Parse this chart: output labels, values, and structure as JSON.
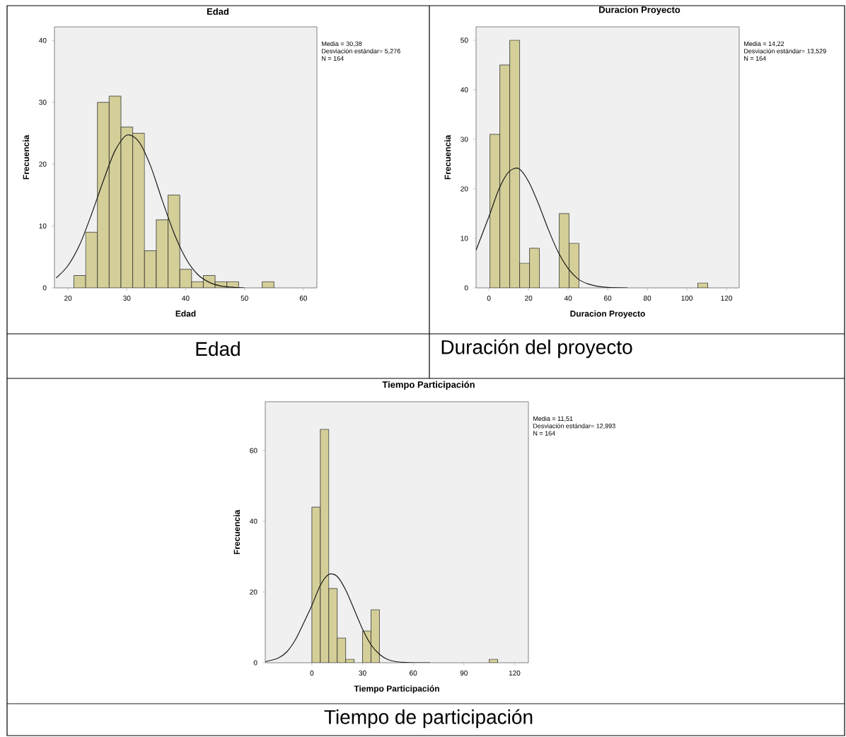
{
  "chart_data": [
    {
      "type": "histogram",
      "title": "Edad",
      "xlabel": "Edad",
      "ylabel": "Frecuencia",
      "bins": [
        21,
        23,
        25,
        27,
        29,
        31,
        33,
        35,
        37,
        39,
        41,
        43,
        45,
        47,
        49,
        51,
        53,
        55
      ],
      "series": [
        {
          "type": "histogram",
          "color": "#d4cf98",
          "values": [
            2,
            9,
            30,
            31,
            26,
            25,
            6,
            11,
            15,
            3,
            1,
            2,
            1,
            1,
            0,
            0,
            1
          ]
        },
        {
          "type": "line",
          "color": "#1a1a1a",
          "x": [
            18,
            20,
            22,
            24,
            26,
            28,
            30,
            32,
            34,
            36,
            38,
            40,
            42,
            44,
            46,
            48,
            50
          ],
          "values": [
            1.6,
            3.6,
            7.0,
            11.9,
            17.3,
            22.2,
            24.7,
            23.7,
            19.8,
            14.2,
            8.9,
            4.8,
            2.2,
            0.9,
            0.3,
            0.1,
            0
          ]
        }
      ],
      "xlim": [
        17.7,
        62.3
      ],
      "ylim": [
        0,
        42.2
      ],
      "xticks": [
        20,
        30,
        40,
        50,
        60
      ],
      "yticks": [
        0,
        10,
        20,
        30,
        40
      ],
      "annotations": [
        "Media = 30,38",
        "Desviación estándar= 5,276",
        "N = 164",
        "Edad"
      ]
    },
    {
      "type": "histogram",
      "title": "Duracion Proyecto",
      "xlabel": "Duracion Proyecto",
      "ylabel": "Frecuencia",
      "bins": [
        0.5,
        5.5,
        10.5,
        15.5,
        20.5,
        25.5,
        30.5,
        35.5,
        40.5,
        45.5,
        50.5,
        55.5,
        60.5,
        65.5,
        70.5,
        75.5,
        80.5,
        85.5,
        90.5,
        95.5,
        100.5,
        105.5,
        110.5
      ],
      "series": [
        {
          "type": "histogram",
          "color": "#d4cf98",
          "values": [
            31,
            45,
            50,
            5,
            8,
            0,
            0,
            15,
            9,
            0,
            0,
            0,
            0,
            0,
            0,
            0,
            0,
            0,
            0,
            0,
            0,
            1
          ]
        },
        {
          "type": "line",
          "color": "#1a1a1a",
          "x": [
            -6.5,
            0,
            5,
            10,
            15,
            20,
            25,
            30,
            35,
            40,
            45,
            50,
            55,
            60,
            70
          ],
          "values": [
            7.6,
            14.4,
            19.9,
            23.4,
            24.1,
            21.5,
            17.0,
            11.8,
            7.2,
            3.9,
            1.8,
            0.8,
            0.3,
            0.1,
            0
          ]
        }
      ],
      "xlim": [
        -6.5,
        126.4
      ],
      "ylim": [
        0,
        52.7
      ],
      "xticks": [
        0,
        20,
        40,
        60,
        80,
        100,
        120
      ],
      "yticks": [
        0,
        10,
        20,
        30,
        40,
        50
      ],
      "annotations": [
        "Media = 14,22",
        "Desviación estándar= 13,529",
        "N = 164",
        "Duración del proyecto"
      ]
    },
    {
      "type": "histogram",
      "title": "Tiempo Participación",
      "xlabel": "Tiempo Participación",
      "ylabel": "Frecuencia",
      "bins": [
        0,
        5,
        10,
        15,
        20,
        25,
        30,
        35,
        40,
        45,
        50,
        55,
        60,
        65,
        70,
        75,
        80,
        85,
        90,
        95,
        100,
        105,
        110
      ],
      "series": [
        {
          "type": "histogram",
          "color": "#d4cf98",
          "values": [
            44,
            66,
            21,
            7,
            1,
            0,
            9,
            15,
            0,
            0,
            0,
            0,
            0,
            0,
            0,
            0,
            0,
            0,
            0,
            0,
            0,
            1
          ]
        },
        {
          "type": "line",
          "color": "#1a1a1a",
          "x": [
            -27.6,
            -20,
            -15,
            -10,
            -5,
            0,
            5,
            10,
            15,
            20,
            25,
            30,
            35,
            40,
            45,
            50,
            55,
            60,
            70
          ],
          "values": [
            0.3,
            1.3,
            3.0,
            6.3,
            11.1,
            16.2,
            21.9,
            25.0,
            24.4,
            20.6,
            15.1,
            9.5,
            5.1,
            2.4,
            0.9,
            0.3,
            0.1,
            0,
            0
          ]
        }
      ],
      "xlim": [
        -27.6,
        128.2
      ],
      "ylim": [
        0,
        73.8
      ],
      "xticks": [
        0,
        30,
        60,
        90,
        120
      ],
      "yticks": [
        0,
        20,
        40,
        60
      ],
      "annotations": [
        "Media = 11,51",
        "Desviación estándar= 12,993",
        "N = 164",
        "Tiempo de participación"
      ]
    }
  ]
}
